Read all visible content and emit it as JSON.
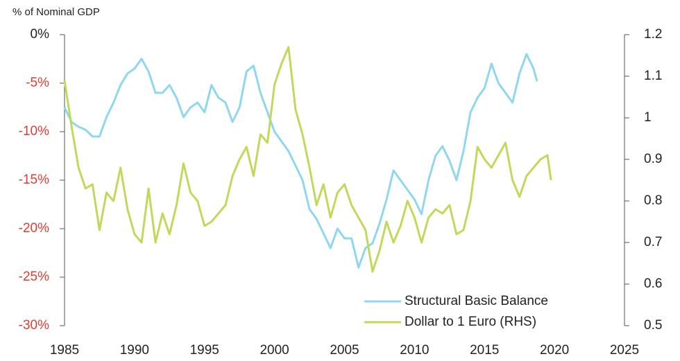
{
  "chart_data": {
    "type": "line",
    "y_axis_label": "% of Nominal GDP",
    "xlim": [
      1985,
      2025
    ],
    "xticks": [
      1985,
      1990,
      1995,
      2000,
      2005,
      2010,
      2015,
      2020,
      2025
    ],
    "ylim": [
      -30,
      0
    ],
    "yticks": [
      {
        "value": -30,
        "label": "-30%",
        "color": "#e03c31"
      },
      {
        "value": -25,
        "label": "-25%",
        "color": "#e03c31"
      },
      {
        "value": -20,
        "label": "-20%",
        "color": "#e03c31"
      },
      {
        "value": -15,
        "label": "-15%",
        "color": "#e03c31"
      },
      {
        "value": -10,
        "label": "-10%",
        "color": "#e03c31"
      },
      {
        "value": -5,
        "label": "-5%",
        "color": "#e03c31"
      },
      {
        "value": 0,
        "label": "0%",
        "color": "#222222"
      }
    ],
    "y2lim": [
      0.5,
      1.2
    ],
    "y2ticks": [
      0.5,
      0.6,
      0.7,
      0.8,
      0.9,
      1,
      1.1,
      1.2
    ],
    "series": [
      {
        "name": "Structural Basic Balance",
        "color": "#8fd6f0",
        "x": [
          1985,
          1985.5,
          1986,
          1986.5,
          1987,
          1987.5,
          1988,
          1988.5,
          1989,
          1989.5,
          1990,
          1990.5,
          1991,
          1991.5,
          1992,
          1992.5,
          1993,
          1993.5,
          1994,
          1994.5,
          1995,
          1995.5,
          1996,
          1996.5,
          1997,
          1997.5,
          1998,
          1998.5,
          1999,
          1999.5,
          2000,
          2000.5,
          2001,
          2001.5,
          2002,
          2002.5,
          2003,
          2003.5,
          2004,
          2004.5,
          2005,
          2005.5,
          2006,
          2006.5,
          2007,
          2007.5,
          2008,
          2008.5,
          2009,
          2009.5,
          2010,
          2010.5,
          2011,
          2011.5,
          2012,
          2012.5,
          2013,
          2013.5,
          2014,
          2014.5,
          2015,
          2015.5,
          2016,
          2016.5,
          2017,
          2017.5,
          2018,
          2018.5,
          2018.75
        ],
        "values": [
          -7.5,
          -9,
          -9.5,
          -9.8,
          -10.5,
          -10.5,
          -8.5,
          -7,
          -5.2,
          -4,
          -3.5,
          -2.5,
          -3.8,
          -6,
          -6,
          -5.2,
          -6.5,
          -8.5,
          -7.5,
          -7,
          -8,
          -5.2,
          -6.5,
          -7,
          -9,
          -7.5,
          -3.8,
          -3.2,
          -6,
          -8,
          -10,
          -11,
          -12,
          -13.5,
          -15,
          -18,
          -19,
          -20.5,
          -22,
          -20,
          -21,
          -21,
          -24,
          -22,
          -21.5,
          -19.5,
          -17,
          -14,
          -15,
          -16,
          -17,
          -18.5,
          -15,
          -12.5,
          -11.5,
          -13,
          -15,
          -12,
          -8,
          -6.5,
          -5.5,
          -3,
          -5,
          -6,
          -7,
          -4,
          -2,
          -3.5,
          -4.8
        ]
      },
      {
        "name": "Dollar to 1 Euro (RHS)",
        "color": "#c0d95a",
        "axis": "y2",
        "x": [
          1985,
          1985.5,
          1986,
          1986.5,
          1987,
          1987.5,
          1988,
          1988.5,
          1989,
          1989.5,
          1990,
          1990.5,
          1991,
          1991.5,
          1992,
          1992.5,
          1993,
          1993.5,
          1994,
          1994.5,
          1995,
          1995.5,
          1996,
          1996.5,
          1997,
          1997.5,
          1998,
          1998.5,
          1999,
          1999.5,
          2000,
          2000.5,
          2001,
          2001.5,
          2002,
          2002.5,
          2003,
          2003.5,
          2004,
          2004.5,
          2005,
          2005.5,
          2006,
          2006.5,
          2007,
          2007.5,
          2008,
          2008.5,
          2009,
          2009.5,
          2010,
          2010.5,
          2011,
          2011.5,
          2012,
          2012.5,
          2013,
          2013.5,
          2014,
          2014.5,
          2015,
          2015.5,
          2016,
          2016.5,
          2017,
          2017.5,
          2018,
          2018.5,
          2019,
          2019.5,
          2019.75
        ],
        "values": [
          1.09,
          0.98,
          0.88,
          0.83,
          0.84,
          0.73,
          0.82,
          0.8,
          0.88,
          0.78,
          0.72,
          0.7,
          0.83,
          0.7,
          0.77,
          0.72,
          0.79,
          0.89,
          0.82,
          0.8,
          0.74,
          0.75,
          0.77,
          0.79,
          0.86,
          0.9,
          0.93,
          0.86,
          0.96,
          0.94,
          1.08,
          1.13,
          1.17,
          1.02,
          0.96,
          0.88,
          0.79,
          0.84,
          0.76,
          0.82,
          0.84,
          0.79,
          0.76,
          0.73,
          0.63,
          0.68,
          0.75,
          0.7,
          0.74,
          0.8,
          0.76,
          0.7,
          0.76,
          0.78,
          0.77,
          0.79,
          0.72,
          0.73,
          0.8,
          0.93,
          0.9,
          0.88,
          0.91,
          0.94,
          0.85,
          0.81,
          0.86,
          0.88,
          0.9,
          0.91,
          0.85
        ]
      }
    ]
  }
}
